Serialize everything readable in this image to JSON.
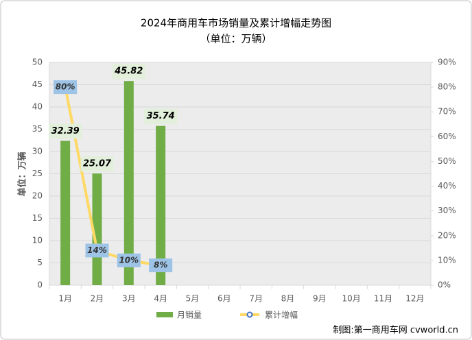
{
  "chart_data": {
    "type": "bar-line",
    "title": "2024年商用车市场销量及累计增幅走势图",
    "subtitle": "（单位：万辆）",
    "y_label": "单位：万辆",
    "source": "制图:第一商用车网 cvworld.cn",
    "categories": [
      "1月",
      "2月",
      "3月",
      "4月",
      "5月",
      "6月",
      "7月",
      "8月",
      "9月",
      "10月",
      "11月",
      "12月"
    ],
    "series": [
      {
        "name": "月销量",
        "type": "bar",
        "color": "#70ad47",
        "values": [
          32.39,
          25.07,
          45.82,
          35.74,
          null,
          null,
          null,
          null,
          null,
          null,
          null,
          null
        ]
      },
      {
        "name": "累计增幅",
        "type": "line",
        "axis": "y2",
        "color": "#ffd966",
        "values": [
          80,
          14,
          10,
          8,
          null,
          null,
          null,
          null,
          null,
          null,
          null,
          null
        ],
        "value_labels": [
          "80%",
          "14%",
          "10%",
          "8%",
          null,
          null,
          null,
          null,
          null,
          null,
          null,
          null
        ]
      }
    ],
    "ylim": [
      0,
      50
    ],
    "yticks": [
      0,
      5,
      10,
      15,
      20,
      25,
      30,
      35,
      40,
      45,
      50
    ],
    "y2lim": [
      0,
      90
    ],
    "y2ticks": [
      {
        "value": 0,
        "label": "0%"
      },
      {
        "value": 10,
        "label": "10%"
      },
      {
        "value": 20,
        "label": "20%"
      },
      {
        "value": 30,
        "label": "30%"
      },
      {
        "value": 40,
        "label": "40%"
      },
      {
        "value": 50,
        "label": "50%"
      },
      {
        "value": 60,
        "label": "60%"
      },
      {
        "value": 70,
        "label": "70%"
      },
      {
        "value": 80,
        "label": "80%"
      },
      {
        "value": 90,
        "label": "90%"
      }
    ],
    "grid": true
  }
}
